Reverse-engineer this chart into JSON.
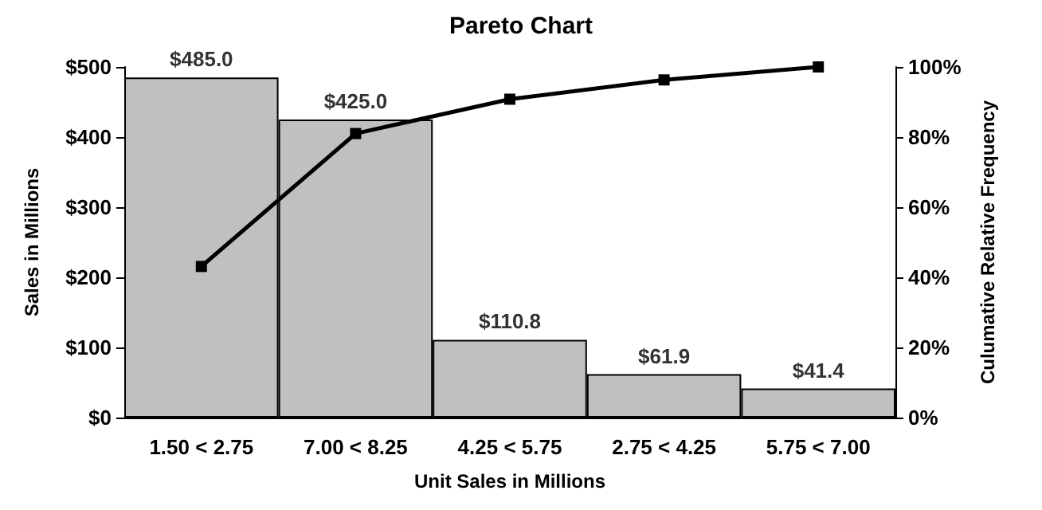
{
  "chart_data": {
    "type": "bar",
    "title": "Pareto Chart",
    "xlabel": "Unit Sales in Millions",
    "ylabel": "Sales in Millions",
    "y2label": "Culumative Relative Frequency",
    "categories": [
      "1.50 < 2.75",
      "7.00 < 8.25",
      "4.25 < 5.75",
      "2.75 < 4.25",
      "5.75 < 7.00"
    ],
    "series": [
      {
        "color": "#c0c0c0",
        "values": [
          485.0,
          425.0,
          110.8,
          61.9,
          41.4
        ],
        "value_labels": [
          "$485.0",
          "$425.0",
          "$110.8",
          "$61.9",
          "$41.4"
        ]
      },
      {
        "type": "line",
        "axis": "y2",
        "color": "#000000",
        "values": [
          43.1,
          81.0,
          90.8,
          96.3,
          100
        ]
      }
    ],
    "ylim": [
      0,
      500
    ],
    "yticks": [
      {
        "value": 0,
        "label": "$0"
      },
      {
        "value": 100,
        "label": "$100"
      },
      {
        "value": 200,
        "label": "$200"
      },
      {
        "value": 300,
        "label": "$300"
      },
      {
        "value": 400,
        "label": "$400"
      },
      {
        "value": 500,
        "label": "$500"
      }
    ],
    "y2lim": [
      0,
      100
    ],
    "y2ticks": [
      {
        "value": 0,
        "label": "0%"
      },
      {
        "value": 20,
        "label": "20%"
      },
      {
        "value": 40,
        "label": "40%"
      },
      {
        "value": 60,
        "label": "60%"
      },
      {
        "value": 80,
        "label": "80%"
      },
      {
        "value": 100,
        "label": "100%"
      }
    ],
    "grid": false,
    "marker": "square",
    "line_style": "solid"
  }
}
